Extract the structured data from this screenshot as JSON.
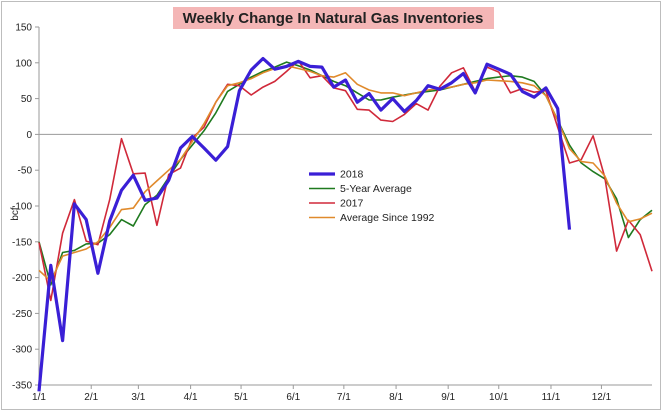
{
  "chart_data": {
    "type": "line",
    "title": "Weekly Change In Natural Gas Inventories",
    "ylabel": "bcf",
    "xlabel": "",
    "ylim": [
      -350,
      150
    ],
    "yticks": [
      150,
      100,
      50,
      0,
      -50,
      -100,
      -150,
      -200,
      -250,
      -300,
      -350
    ],
    "xlim": [
      1,
      53
    ],
    "xticks": [
      {
        "label": "1/1",
        "week": 1
      },
      {
        "label": "2/1",
        "week": 5.43
      },
      {
        "label": "3/1",
        "week": 9.43
      },
      {
        "label": "4/1",
        "week": 13.86
      },
      {
        "label": "5/1",
        "week": 18.14
      },
      {
        "label": "6/1",
        "week": 22.57
      },
      {
        "label": "7/1",
        "week": 26.86
      },
      {
        "label": "8/1",
        "week": 31.29
      },
      {
        "label": "9/1",
        "week": 35.71
      },
      {
        "label": "10/1",
        "week": 40
      },
      {
        "label": "11/1",
        "week": 44.43
      },
      {
        "label": "12/1",
        "week": 48.71
      }
    ],
    "legend_position": "center",
    "series": [
      {
        "name": "2018",
        "color": "#3a1fd6",
        "width": 3.2,
        "x": [
          1,
          2,
          3,
          4,
          5,
          6,
          7,
          8,
          9,
          10,
          11,
          12,
          13,
          14,
          15,
          16,
          17,
          18,
          19,
          20,
          21,
          22,
          23,
          24,
          25,
          26,
          27,
          28,
          29,
          30,
          31,
          32,
          33,
          34,
          35,
          36,
          37,
          38,
          39,
          40,
          41,
          42,
          43,
          44,
          45,
          46
        ],
        "values": [
          -359,
          -183,
          -288,
          -97,
          -119,
          -194,
          -121,
          -78,
          -57,
          -92,
          -89,
          -64,
          -19,
          -3,
          -19,
          -36,
          -17,
          61,
          90,
          106,
          91,
          95,
          102,
          95,
          94,
          66,
          76,
          45,
          57,
          34,
          50,
          32,
          47,
          68,
          63,
          72,
          85,
          58,
          98,
          91,
          84,
          60,
          52,
          65,
          36,
          -133
        ]
      },
      {
        "name": "5-Year Average",
        "color": "#1f7a1f",
        "width": 1.6,
        "x": [
          1,
          2,
          3,
          4,
          5,
          6,
          7,
          8,
          9,
          10,
          11,
          12,
          13,
          14,
          15,
          16,
          17,
          18,
          19,
          20,
          21,
          22,
          23,
          24,
          25,
          26,
          27,
          28,
          29,
          30,
          31,
          32,
          33,
          34,
          35,
          36,
          37,
          38,
          39,
          40,
          41,
          42,
          43,
          44,
          45,
          46,
          47,
          48,
          49,
          50,
          51,
          52,
          53
        ],
        "values": [
          -150,
          -210,
          -165,
          -162,
          -153,
          -152,
          -140,
          -119,
          -128,
          -98,
          -85,
          -60,
          -35,
          -15,
          5,
          30,
          60,
          70,
          80,
          88,
          94,
          101,
          96,
          90,
          82,
          74,
          68,
          58,
          48,
          48,
          52,
          55,
          58,
          60,
          62,
          66,
          70,
          74,
          78,
          80,
          82,
          80,
          74,
          54,
          20,
          -15,
          -40,
          -52,
          -62,
          -90,
          -144,
          -119,
          -106
        ]
      },
      {
        "name": "2017",
        "color": "#d0293a",
        "width": 1.6,
        "x": [
          1,
          2,
          3,
          4,
          5,
          6,
          7,
          8,
          9,
          10,
          11,
          12,
          13,
          14,
          15,
          16,
          17,
          18,
          19,
          20,
          21,
          22,
          23,
          24,
          25,
          26,
          27,
          28,
          29,
          30,
          31,
          32,
          33,
          34,
          35,
          36,
          37,
          38,
          39,
          40,
          41,
          42,
          43,
          44,
          45,
          46,
          47,
          48,
          49,
          50,
          51,
          52,
          53
        ],
        "values": [
          -151,
          -232,
          -138,
          -91,
          -149,
          -154,
          -91,
          -6,
          -55,
          -54,
          -127,
          -56,
          -47,
          -5,
          10,
          45,
          70,
          68,
          55,
          66,
          74,
          88,
          103,
          79,
          82,
          65,
          61,
          35,
          34,
          20,
          18,
          28,
          43,
          34,
          67,
          86,
          93,
          60,
          94,
          87,
          58,
          64,
          59,
          61,
          10,
          -40,
          -35,
          -2,
          -60,
          -163,
          -120,
          -140,
          -191
        ]
      },
      {
        "name": "Average Since 1992",
        "color": "#e08a2c",
        "width": 1.6,
        "x": [
          1,
          2,
          3,
          4,
          5,
          6,
          7,
          8,
          9,
          10,
          11,
          12,
          13,
          14,
          15,
          16,
          17,
          18,
          19,
          20,
          21,
          22,
          23,
          24,
          25,
          26,
          27,
          28,
          29,
          30,
          31,
          32,
          33,
          34,
          35,
          36,
          37,
          38,
          39,
          40,
          41,
          42,
          43,
          44,
          45,
          46,
          47,
          48,
          49,
          50,
          51,
          52,
          53
        ],
        "values": [
          -190,
          -205,
          -170,
          -165,
          -160,
          -150,
          -130,
          -105,
          -103,
          -80,
          -65,
          -50,
          -35,
          -10,
          15,
          45,
          68,
          72,
          78,
          86,
          92,
          96,
          92,
          88,
          82,
          80,
          86,
          70,
          62,
          58,
          58,
          54,
          58,
          62,
          64,
          66,
          70,
          72,
          76,
          75,
          74,
          72,
          68,
          54,
          20,
          -20,
          -38,
          -40,
          -58,
          -96,
          -122,
          -118,
          -110
        ]
      }
    ]
  }
}
